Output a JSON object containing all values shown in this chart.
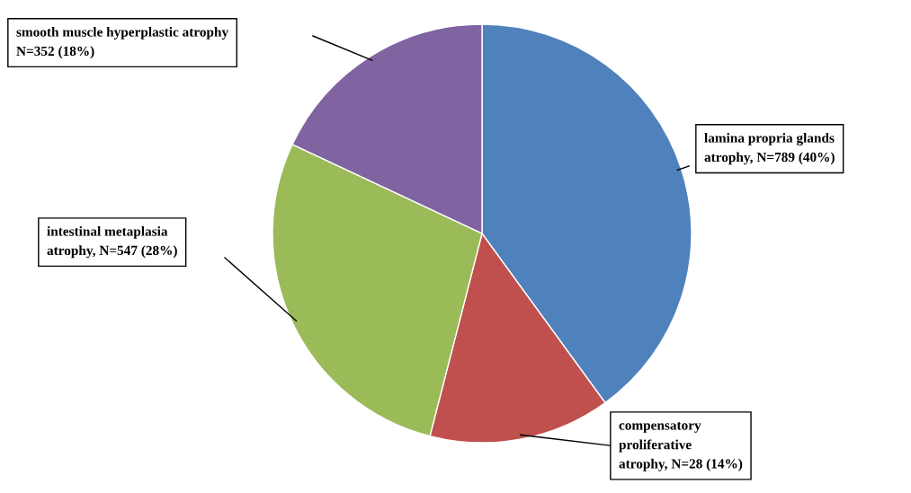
{
  "chart_data": {
    "type": "pie",
    "categories": [
      "lamina propria glands\natrophy, N=789 (40%)",
      "compensatory\nproliferative\natrophy, N=28 (14%)",
      "intestinal metaplasia\natrophy, N=547 (28%)",
      "smooth muscle hyperplastic atrophy\nN=352 (18%)"
    ],
    "values": [
      40,
      14,
      28,
      18
    ],
    "colors": [
      "#4f81bd",
      "#c0504d",
      "#9bbb59",
      "#8064a2"
    ]
  }
}
